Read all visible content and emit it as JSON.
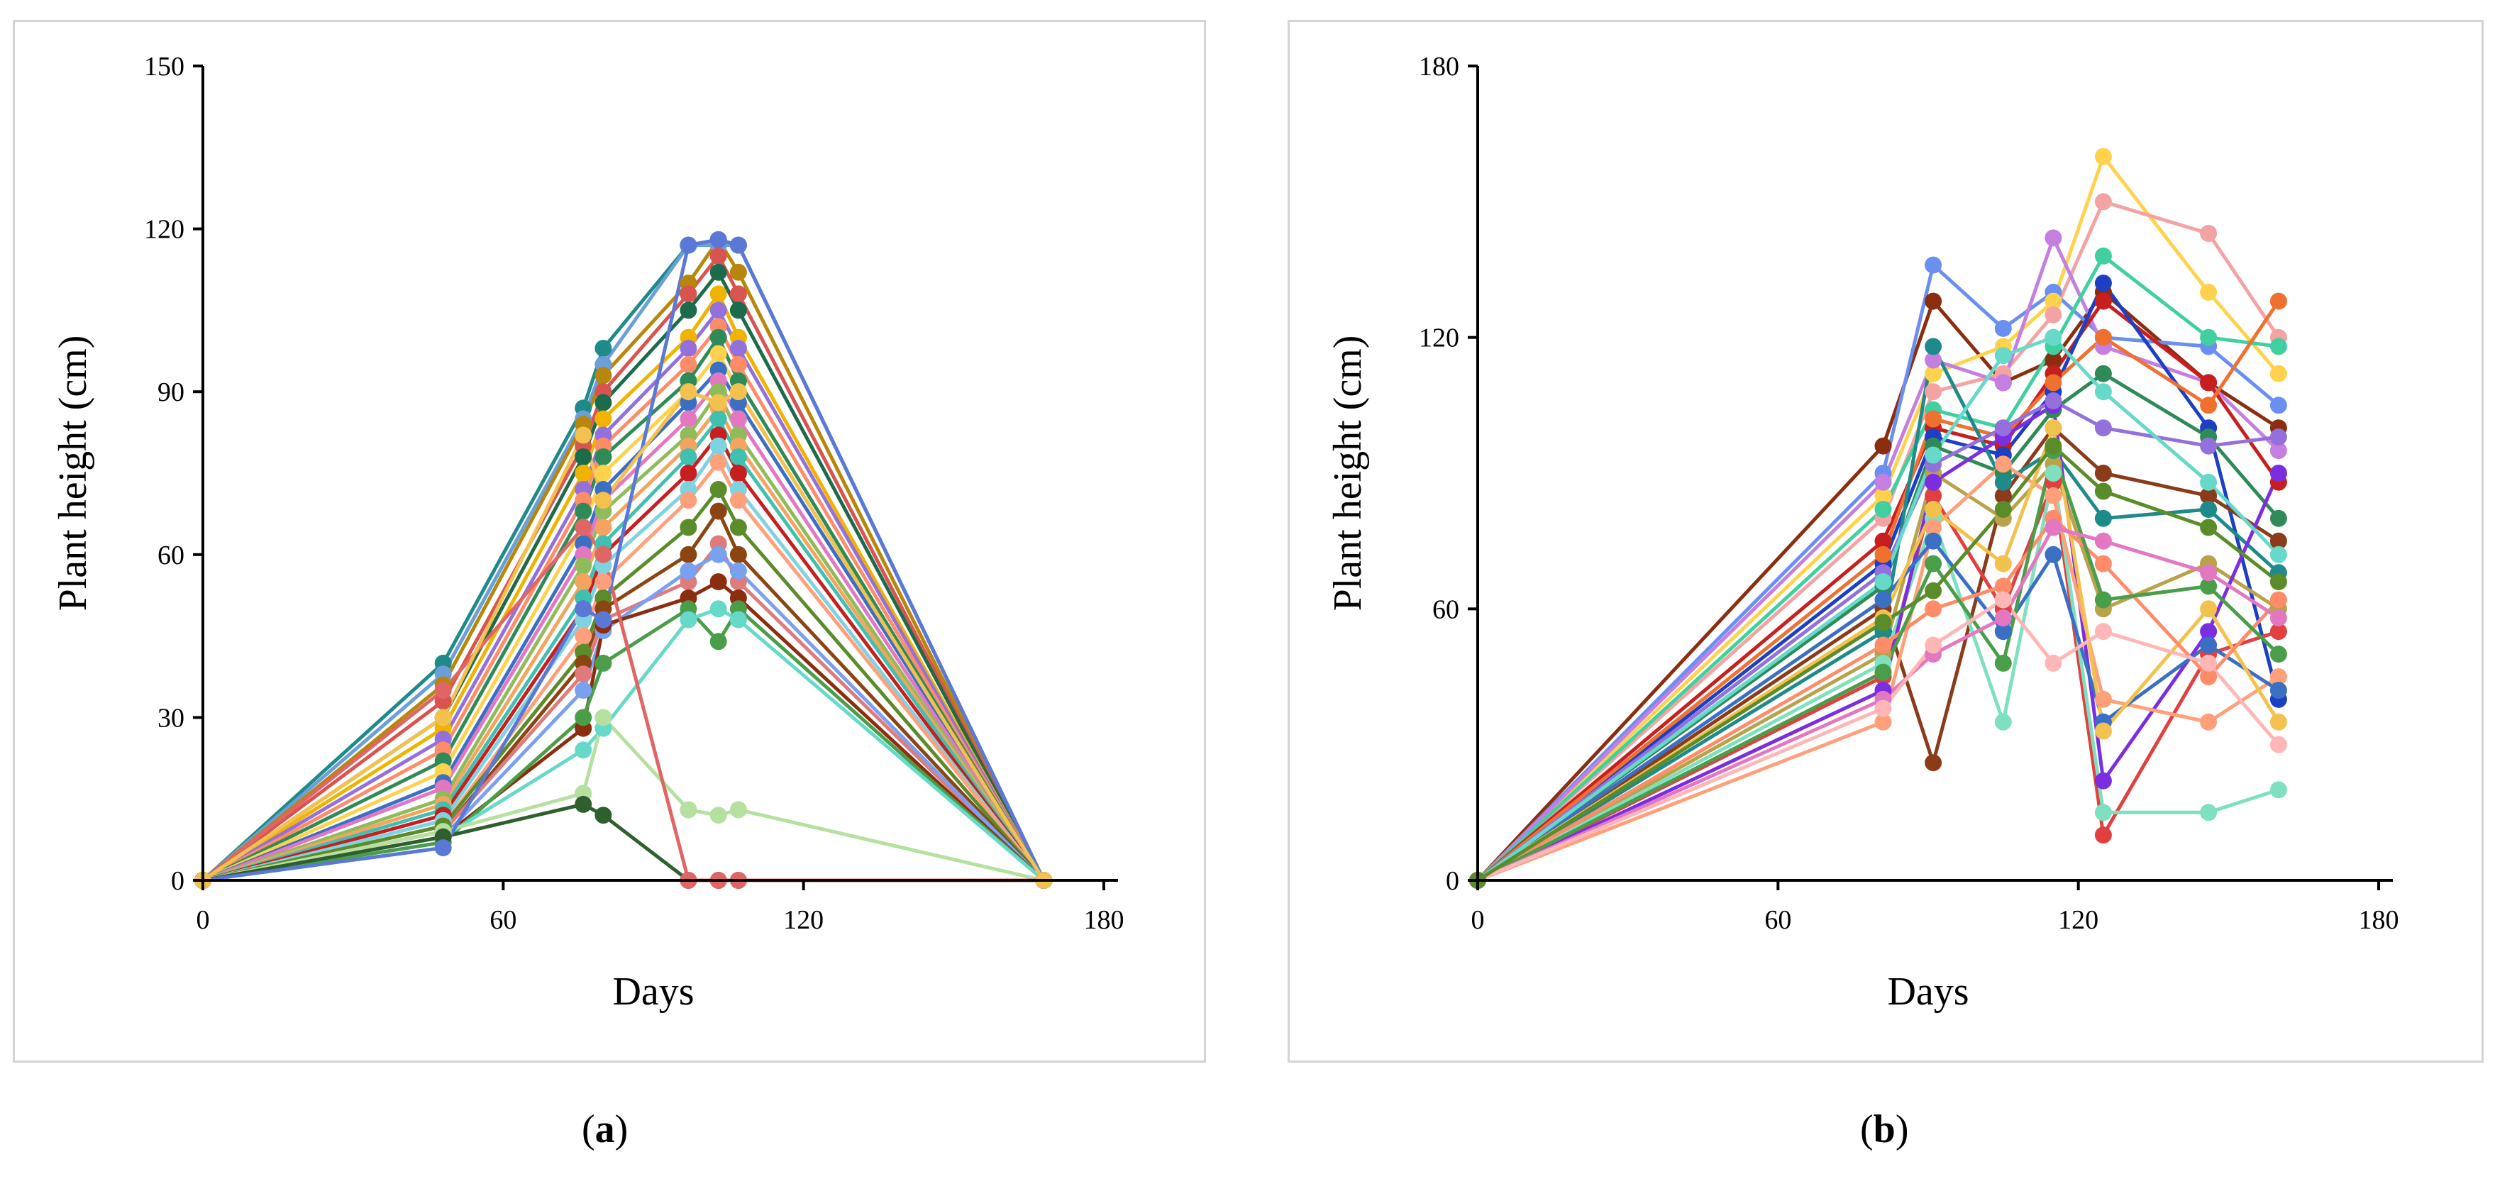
{
  "chart_data": [
    {
      "type": "line",
      "panel_label": "a",
      "caption": [
        "(",
        "a",
        ")"
      ],
      "xlabel": "Days",
      "ylabel": "Plant height (cm)",
      "xlim": [
        0,
        180
      ],
      "ylim": [
        0,
        150
      ],
      "xticks": [
        0,
        60,
        120,
        180
      ],
      "yticks": [
        0,
        30,
        60,
        90,
        120,
        150
      ],
      "x": [
        0,
        48,
        76,
        80,
        97,
        103,
        107,
        168
      ],
      "series": [
        {
          "name": "line-1",
          "color": "#1f8a8a",
          "values": [
            0,
            40,
            87,
            98,
            117,
            118,
            117,
            0
          ]
        },
        {
          "name": "line-2",
          "color": "#6a9fd8",
          "values": [
            0,
            38,
            85,
            95,
            117,
            117,
            117,
            0
          ]
        },
        {
          "name": "line-3",
          "color": "#b8860b",
          "values": [
            0,
            36,
            84,
            93,
            110,
            118,
            112,
            0
          ]
        },
        {
          "name": "line-4",
          "color": "#d9534f",
          "values": [
            0,
            33,
            80,
            90,
            108,
            115,
            108,
            0
          ]
        },
        {
          "name": "line-5",
          "color": "#1c6b4a",
          "values": [
            0,
            30,
            78,
            88,
            105,
            112,
            105,
            0
          ]
        },
        {
          "name": "line-6",
          "color": "#f0b400",
          "values": [
            0,
            28,
            75,
            85,
            100,
            108,
            100,
            0
          ]
        },
        {
          "name": "line-7",
          "color": "#9370db",
          "values": [
            0,
            26,
            72,
            82,
            98,
            105,
            98,
            0
          ]
        },
        {
          "name": "line-8",
          "color": "#ff8c69",
          "values": [
            0,
            24,
            70,
            80,
            95,
            102,
            95,
            0
          ]
        },
        {
          "name": "line-9",
          "color": "#2e8b57",
          "values": [
            0,
            22,
            68,
            78,
            92,
            100,
            92,
            0
          ]
        },
        {
          "name": "line-10",
          "color": "#ffd24d",
          "values": [
            0,
            20,
            65,
            75,
            90,
            97,
            90,
            0
          ]
        },
        {
          "name": "line-11",
          "color": "#3b6fc4",
          "values": [
            0,
            18,
            62,
            72,
            88,
            94,
            88,
            0
          ]
        },
        {
          "name": "line-12",
          "color": "#e377c2",
          "values": [
            0,
            17,
            60,
            70,
            85,
            92,
            85,
            0
          ]
        },
        {
          "name": "line-13",
          "color": "#8fbc5a",
          "values": [
            0,
            15,
            58,
            68,
            82,
            90,
            82,
            0
          ]
        },
        {
          "name": "line-14",
          "color": "#f4a460",
          "values": [
            0,
            14,
            55,
            65,
            80,
            87,
            80,
            0
          ]
        },
        {
          "name": "line-15",
          "color": "#40c0b0",
          "values": [
            0,
            13,
            52,
            62,
            78,
            85,
            78,
            0
          ]
        },
        {
          "name": "line-16",
          "color": "#c71f1f",
          "values": [
            0,
            12,
            50,
            60,
            75,
            82,
            75,
            0
          ]
        },
        {
          "name": "line-17",
          "color": "#7fd3e0",
          "values": [
            0,
            11,
            48,
            58,
            72,
            80,
            72,
            0
          ]
        },
        {
          "name": "line-18",
          "color": "#ffa07a",
          "values": [
            0,
            10,
            45,
            55,
            70,
            77,
            70,
            0
          ]
        },
        {
          "name": "line-19",
          "color": "#5b8c2a",
          "values": [
            0,
            10,
            42,
            52,
            65,
            72,
            65,
            0
          ]
        },
        {
          "name": "line-20",
          "color": "#8b4513",
          "values": [
            0,
            9,
            40,
            50,
            60,
            68,
            60,
            0
          ]
        },
        {
          "name": "line-21",
          "color": "#e07b7b",
          "values": [
            0,
            9,
            38,
            48,
            55,
            62,
            55,
            0
          ]
        },
        {
          "name": "line-22",
          "color": "#7aa0f0",
          "values": [
            0,
            8,
            35,
            46,
            57,
            60,
            57,
            0
          ]
        },
        {
          "name": "line-23",
          "color": "#8b2e0f",
          "values": [
            0,
            8,
            28,
            47,
            52,
            55,
            52,
            0
          ]
        },
        {
          "name": "line-24",
          "color": "#4a9e4a",
          "values": [
            0,
            7,
            30,
            40,
            50,
            44,
            50,
            0
          ]
        },
        {
          "name": "line-25",
          "color": "#66d9c9",
          "values": [
            0,
            8,
            24,
            28,
            48,
            50,
            48,
            0
          ]
        },
        {
          "name": "line-26",
          "color": "#b5e0a0",
          "values": [
            0,
            9,
            16,
            30,
            13,
            12,
            13,
            0
          ]
        },
        {
          "name": "line-27",
          "color": "#2f5e2f",
          "values": [
            0,
            8,
            14,
            12,
            0,
            0,
            0,
            0
          ]
        },
        {
          "name": "line-28",
          "color": "#e06666",
          "values": [
            0,
            35,
            65,
            60,
            0,
            0,
            0,
            0
          ]
        },
        {
          "name": "line-29",
          "color": "#5a78d6",
          "values": [
            0,
            6,
            50,
            48,
            117,
            118,
            117,
            0
          ]
        },
        {
          "name": "line-30",
          "color": "#f2c14e",
          "values": [
            0,
            30,
            82,
            70,
            90,
            88,
            90,
            0
          ]
        }
      ]
    },
    {
      "type": "line",
      "panel_label": "b",
      "caption": [
        "(",
        "b",
        ")"
      ],
      "xlabel": "Days",
      "ylabel": "Plant height (cm)",
      "xlim": [
        0,
        180
      ],
      "ylim": [
        0,
        180
      ],
      "xticks": [
        0,
        60,
        120,
        180
      ],
      "yticks": [
        0,
        60,
        120,
        180
      ],
      "x": [
        0,
        81,
        91,
        105,
        115,
        125,
        146,
        160
      ],
      "series": [
        {
          "name": "line-1",
          "color": "#8b2e0f",
          "values": [
            0,
            96,
            128,
            110,
            115,
            130,
            110,
            100
          ]
        },
        {
          "name": "line-2",
          "color": "#6a8ff0",
          "values": [
            0,
            90,
            136,
            122,
            130,
            120,
            118,
            105
          ]
        },
        {
          "name": "line-3",
          "color": "#ffd24d",
          "values": [
            0,
            85,
            112,
            118,
            128,
            160,
            130,
            112
          ]
        },
        {
          "name": "line-4",
          "color": "#f4a3a3",
          "values": [
            0,
            80,
            108,
            112,
            125,
            150,
            143,
            120
          ]
        },
        {
          "name": "line-5",
          "color": "#c47fe0",
          "values": [
            0,
            88,
            115,
            110,
            142,
            118,
            110,
            95
          ]
        },
        {
          "name": "line-6",
          "color": "#40d0a0",
          "values": [
            0,
            82,
            104,
            100,
            118,
            138,
            120,
            118
          ]
        },
        {
          "name": "line-7",
          "color": "#c71f1f",
          "values": [
            0,
            75,
            100,
            96,
            112,
            128,
            110,
            88
          ]
        },
        {
          "name": "line-8",
          "color": "#1c3fc4",
          "values": [
            0,
            70,
            98,
            94,
            108,
            132,
            100,
            40
          ]
        },
        {
          "name": "line-9",
          "color": "#f07030",
          "values": [
            0,
            72,
            102,
            98,
            110,
            120,
            105,
            128
          ]
        },
        {
          "name": "line-10",
          "color": "#2e8b57",
          "values": [
            0,
            65,
            96,
            90,
            104,
            112,
            98,
            80
          ]
        },
        {
          "name": "line-11",
          "color": "#8a3c1a",
          "values": [
            0,
            60,
            26,
            85,
            100,
            90,
            85,
            75
          ]
        },
        {
          "name": "line-12",
          "color": "#1f8a8a",
          "values": [
            0,
            55,
            118,
            88,
            95,
            80,
            82,
            68
          ]
        },
        {
          "name": "line-13",
          "color": "#b8a24a",
          "values": [
            0,
            50,
            90,
            80,
            92,
            60,
            70,
            60
          ]
        },
        {
          "name": "line-14",
          "color": "#e04040",
          "values": [
            0,
            45,
            85,
            60,
            88,
            10,
            50,
            55
          ]
        },
        {
          "name": "line-15",
          "color": "#7fe0c0",
          "values": [
            0,
            48,
            80,
            35,
            90,
            15,
            15,
            20
          ]
        },
        {
          "name": "line-16",
          "color": "#7a2ee0",
          "values": [
            0,
            42,
            88,
            98,
            105,
            22,
            55,
            90
          ]
        },
        {
          "name": "line-17",
          "color": "#ffa07a",
          "values": [
            0,
            35,
            78,
            92,
            85,
            40,
            35,
            45
          ]
        },
        {
          "name": "line-18",
          "color": "#3b6fc4",
          "values": [
            0,
            62,
            75,
            55,
            72,
            35,
            52,
            42
          ]
        },
        {
          "name": "line-19",
          "color": "#f2c14e",
          "values": [
            0,
            58,
            82,
            70,
            100,
            33,
            60,
            35
          ]
        },
        {
          "name": "line-20",
          "color": "#9370db",
          "values": [
            0,
            68,
            92,
            100,
            106,
            100,
            96,
            98
          ]
        },
        {
          "name": "line-21",
          "color": "#ff8c69",
          "values": [
            0,
            52,
            60,
            65,
            80,
            70,
            45,
            62
          ]
        },
        {
          "name": "line-22",
          "color": "#4a9e4a",
          "values": [
            0,
            46,
            70,
            48,
            95,
            62,
            65,
            50
          ]
        },
        {
          "name": "line-23",
          "color": "#e377c2",
          "values": [
            0,
            40,
            50,
            58,
            78,
            75,
            68,
            58
          ]
        },
        {
          "name": "line-24",
          "color": "#66d9c9",
          "values": [
            0,
            66,
            94,
            116,
            120,
            108,
            88,
            72
          ]
        },
        {
          "name": "line-25",
          "color": "#ffb6b6",
          "values": [
            0,
            38,
            52,
            62,
            48,
            55,
            48,
            30
          ]
        },
        {
          "name": "line-26",
          "color": "#5b8c2a",
          "values": [
            0,
            57,
            64,
            82,
            96,
            86,
            78,
            66
          ]
        }
      ]
    }
  ]
}
